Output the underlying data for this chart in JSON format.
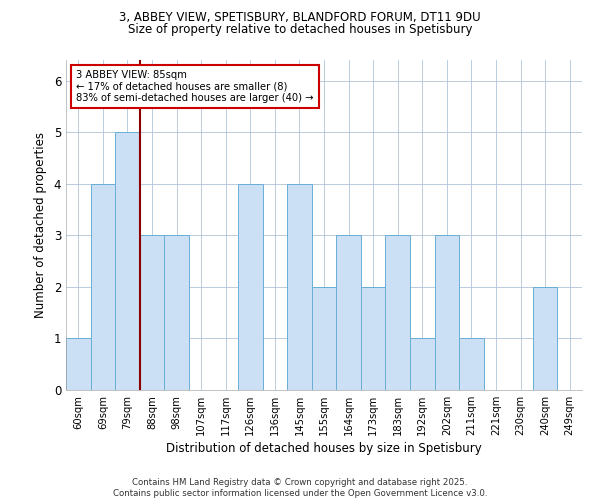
{
  "title1": "3, ABBEY VIEW, SPETISBURY, BLANDFORD FORUM, DT11 9DU",
  "title2": "Size of property relative to detached houses in Spetisbury",
  "xlabel": "Distribution of detached houses by size in Spetisbury",
  "ylabel": "Number of detached properties",
  "categories": [
    "60sqm",
    "69sqm",
    "79sqm",
    "88sqm",
    "98sqm",
    "107sqm",
    "117sqm",
    "126sqm",
    "136sqm",
    "145sqm",
    "155sqm",
    "164sqm",
    "173sqm",
    "183sqm",
    "192sqm",
    "202sqm",
    "211sqm",
    "221sqm",
    "230sqm",
    "240sqm",
    "249sqm"
  ],
  "values": [
    1,
    4,
    5,
    3,
    3,
    0,
    0,
    4,
    0,
    4,
    2,
    3,
    2,
    3,
    1,
    3,
    1,
    0,
    0,
    2,
    0
  ],
  "bar_color": "#cce0f5",
  "bar_edge_color": "#6aaed6",
  "red_line_x": 2.5,
  "annotation_text": "3 ABBEY VIEW: 85sqm\n← 17% of detached houses are smaller (8)\n83% of semi-detached houses are larger (40) →",
  "annotation_box_color": "#ffffff",
  "annotation_box_edge": "#cc0000",
  "red_line_color": "#8b0000",
  "ylim": [
    0,
    6.4
  ],
  "yticks": [
    0,
    1,
    2,
    3,
    4,
    5,
    6
  ],
  "footer": "Contains HM Land Registry data © Crown copyright and database right 2025.\nContains public sector information licensed under the Open Government Licence v3.0.",
  "bg_color": "#ffffff",
  "grid_color": "#b0c4d8"
}
